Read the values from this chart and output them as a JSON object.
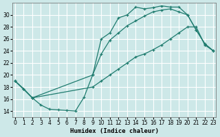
{
  "background_color": "#cde8e8",
  "grid_color": "#ffffff",
  "line_color": "#1e7b6e",
  "xlabel": "Humidex (Indice chaleur)",
  "xlim": [
    -0.3,
    23.3
  ],
  "ylim": [
    13.0,
    32.0
  ],
  "yticks": [
    14,
    16,
    18,
    20,
    22,
    24,
    26,
    28,
    30
  ],
  "xticks": [
    0,
    1,
    2,
    3,
    4,
    5,
    6,
    7,
    8,
    9,
    10,
    11,
    12,
    13,
    14,
    15,
    16,
    17,
    18,
    19,
    20,
    21,
    22,
    23
  ],
  "line1_x": [
    0,
    1,
    2,
    3,
    4,
    5,
    6,
    7,
    8,
    9,
    10,
    11,
    12,
    13,
    14,
    15,
    16,
    17,
    18,
    19,
    20,
    21,
    22,
    23
  ],
  "line1_y": [
    19.0,
    17.7,
    16.2,
    15.0,
    14.3,
    14.2,
    14.1,
    14.0,
    16.3,
    20.0,
    26.0,
    27.0,
    29.5,
    30.0,
    31.3,
    31.0,
    31.2,
    31.5,
    31.3,
    31.3,
    30.0,
    27.5,
    25.2,
    24.0
  ],
  "line2_x": [
    0,
    1,
    2,
    9,
    10,
    11,
    12,
    13,
    14,
    15,
    16,
    17,
    18,
    19,
    20,
    21,
    22,
    23
  ],
  "line2_y": [
    19.0,
    17.7,
    16.2,
    20.0,
    23.5,
    25.8,
    27.0,
    28.2,
    29.0,
    29.8,
    30.5,
    30.8,
    31.0,
    30.5,
    30.0,
    27.5,
    25.2,
    24.0
  ],
  "line3_x": [
    0,
    2,
    9,
    10,
    11,
    12,
    13,
    14,
    15,
    16,
    17,
    18,
    19,
    20,
    21,
    22,
    23
  ],
  "line3_y": [
    19.0,
    16.2,
    18.0,
    19.0,
    20.0,
    21.0,
    22.0,
    23.0,
    23.5,
    24.2,
    25.0,
    26.0,
    27.0,
    28.0,
    28.0,
    25.0,
    24.0
  ]
}
